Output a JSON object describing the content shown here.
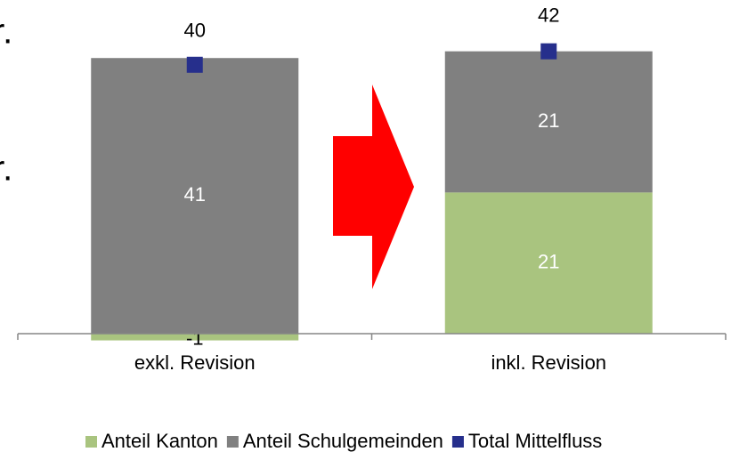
{
  "chart_data": {
    "type": "bar",
    "stacked": true,
    "annotations": [
      "r.",
      "r."
    ],
    "categories": [
      "exkl. Revision",
      "inkl. Revision"
    ],
    "series": [
      {
        "name": "Anteil Kanton",
        "color": "#a9c47f",
        "values": [
          -1,
          21
        ]
      },
      {
        "name": "Anteil Schulgemeinden",
        "color": "#808080",
        "values": [
          41,
          21
        ]
      },
      {
        "name": "Total Mittelfluss",
        "color": "#262f8c",
        "kind": "marker",
        "values": [
          40,
          42
        ]
      }
    ],
    "ylim": [
      -5,
      45
    ],
    "legend": "bottom"
  }
}
